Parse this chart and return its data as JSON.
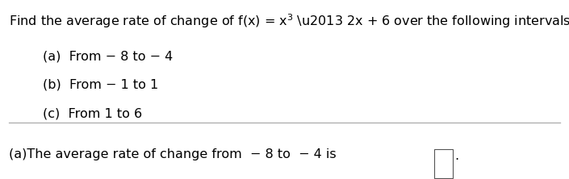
{
  "title_line": "Find the average rate of change of f(x) = x$^3$ – 2x + 6 over the following intervals.",
  "items": [
    "(a)  From − 8 to − 4",
    "(b)  From − 1 to 1",
    "(c)  From 1 to 6"
  ],
  "bottom_text": "(a)The average rate of change from  − 8 to  − 4 is",
  "bg_color": "#ffffff",
  "text_color": "#000000",
  "font_size": 11.5,
  "divider_color": "#aaaaaa"
}
